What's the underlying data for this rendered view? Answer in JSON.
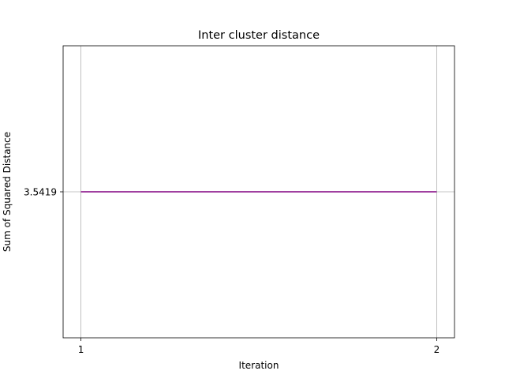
{
  "chart_data": {
    "type": "line",
    "title": "Inter cluster distance",
    "xlabel": "Iteration",
    "ylabel": "Sum of Squared Distance",
    "x": [
      1,
      2
    ],
    "series": [
      {
        "values": [
          3.5419,
          3.5419
        ],
        "color": "#800080"
      }
    ],
    "xticks": [
      1,
      2
    ],
    "xtick_labels": [
      "1",
      "2"
    ],
    "yticks": [
      3.5419
    ],
    "ytick_labels": [
      "3.5419"
    ],
    "xlim": [
      0.95,
      2.05
    ],
    "ylim": [
      3.4419,
      3.6419
    ],
    "grid": true
  }
}
